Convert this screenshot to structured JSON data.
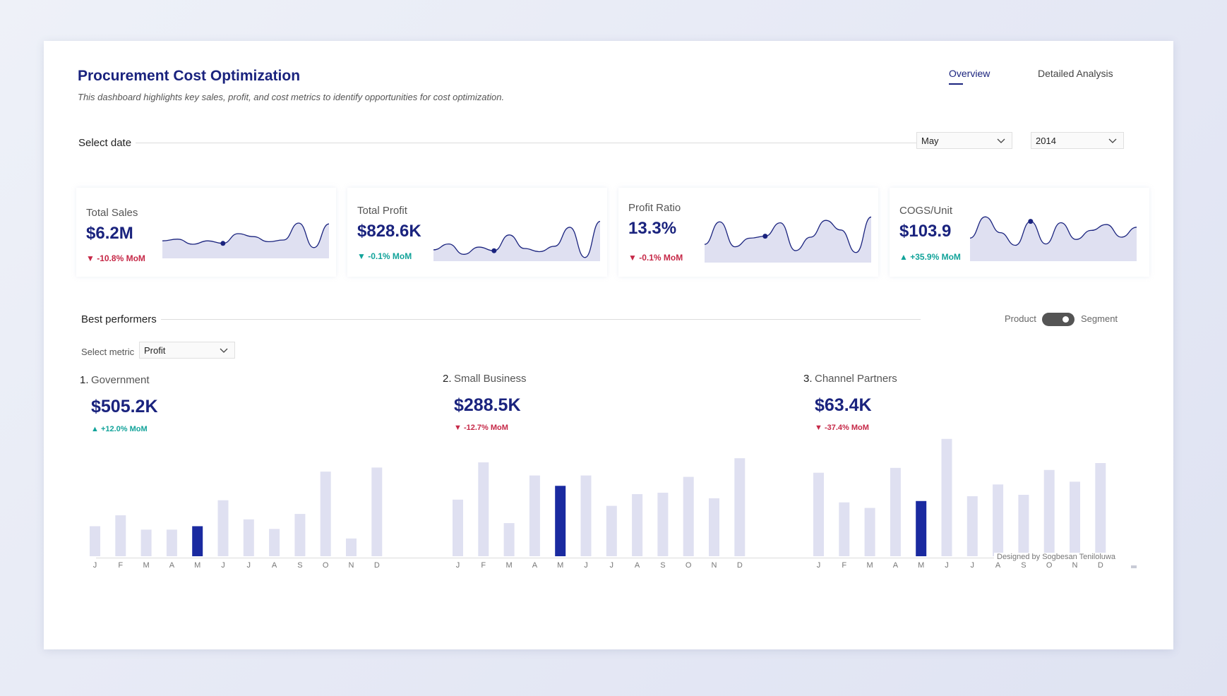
{
  "header": {
    "title": "Procurement Cost Optimization",
    "subtitle": "This dashboard highlights key sales, profit, and cost metrics to identify opportunities for cost optimization."
  },
  "tabs": [
    {
      "label": "Overview",
      "active": true
    },
    {
      "label": "Detailed Analysis",
      "active": false
    }
  ],
  "date_filter": {
    "label": "Select date",
    "month": "May",
    "year": "2014"
  },
  "kpis": [
    {
      "label": "Total Sales",
      "value": "$6.2M",
      "delta": "▼ -10.8% MoM",
      "trend": "negative",
      "spark": [
        0.38,
        0.42,
        0.3,
        0.38,
        0.32,
        0.55,
        0.48,
        0.36,
        0.4,
        0.8,
        0.22,
        0.78
      ],
      "highlight_index": 4
    },
    {
      "label": "Total Profit",
      "value": "$828.6K",
      "delta": "▼ -0.1% MoM",
      "trend": "positive",
      "spark": [
        0.22,
        0.35,
        0.12,
        0.28,
        0.2,
        0.55,
        0.25,
        0.18,
        0.3,
        0.72,
        0.05,
        0.85
      ],
      "highlight_index": 4
    },
    {
      "label": "Profit Ratio",
      "value": "13.3%",
      "delta": "▼ -0.1% MoM",
      "trend": "negative",
      "spark": [
        0.35,
        0.82,
        0.3,
        0.48,
        0.52,
        0.8,
        0.22,
        0.5,
        0.85,
        0.65,
        0.18,
        0.92
      ],
      "highlight_index": 4
    },
    {
      "label": "COGS/Unit",
      "value": "$103.9",
      "delta": "▲ +35.9% MoM",
      "trend": "positive",
      "spark": [
        0.48,
        0.95,
        0.6,
        0.32,
        0.85,
        0.35,
        0.82,
        0.45,
        0.65,
        0.78,
        0.5,
        0.72
      ],
      "highlight_index": 4
    }
  ],
  "best_performers": {
    "label": "Best performers",
    "toggle_left": "Product",
    "toggle_right": "Segment",
    "metric_label": "Select metric",
    "metric_value": "Profit",
    "items": [
      {
        "rank": "1.",
        "name": "Government",
        "value": "$505.2K",
        "delta": "▲ +12.0% MoM",
        "trend": "positive"
      },
      {
        "rank": "2.",
        "name": "Small Business",
        "value": "$288.5K",
        "delta": "▼ -12.7% MoM",
        "trend": "negative"
      },
      {
        "rank": "3.",
        "name": "Channel Partners",
        "value": "$63.4K",
        "delta": "▼ -37.4% MoM",
        "trend": "negative"
      }
    ]
  },
  "chart_data": [
    {
      "type": "bar",
      "categories": [
        "J",
        "F",
        "M",
        "A",
        "M",
        "J",
        "J",
        "A",
        "S",
        "O",
        "N",
        "D"
      ],
      "values": [
        44,
        60,
        39,
        39,
        44,
        82,
        54,
        40,
        62,
        124,
        26,
        130
      ],
      "highlight_index": 4
    },
    {
      "type": "bar",
      "categories": [
        "J",
        "F",
        "M",
        "A",
        "M",
        "J",
        "J",
        "A",
        "S",
        "O",
        "N",
        "D"
      ],
      "values": [
        82,
        136,
        48,
        117,
        102,
        117,
        73,
        90,
        92,
        115,
        84,
        142
      ],
      "highlight_index": 4
    },
    {
      "type": "bar",
      "categories": [
        "J",
        "F",
        "M",
        "A",
        "M",
        "J",
        "J",
        "A",
        "S",
        "O",
        "N",
        "D"
      ],
      "values": [
        121,
        78,
        70,
        128,
        80,
        170,
        87,
        104,
        89,
        125,
        108,
        135
      ],
      "highlight_index": 4
    }
  ],
  "footer": {
    "credit": "Designed by Sogbesan Teniloluwa"
  },
  "colors": {
    "accent": "#1a237e",
    "bar_muted": "#dfe0f1",
    "bar_highlight": "#1a2aa0",
    "spark_fill": "#dfe0f1",
    "negative": "#c62847",
    "positive": "#12a39a"
  }
}
